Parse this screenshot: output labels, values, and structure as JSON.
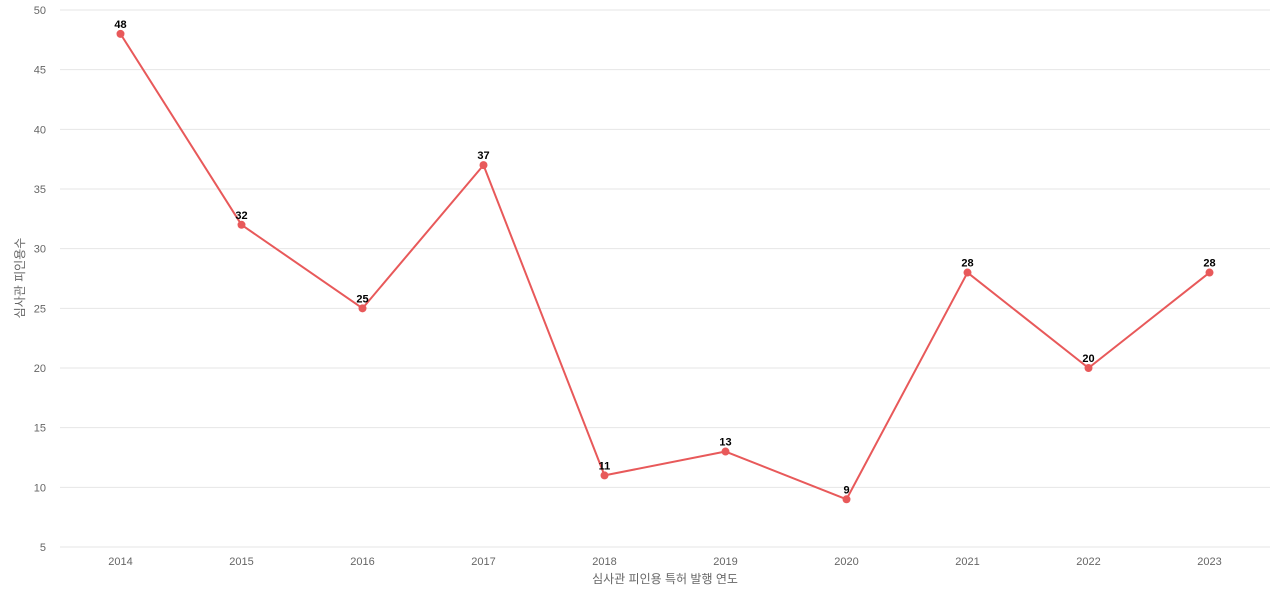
{
  "chart_data": {
    "type": "line",
    "x": [
      "2014",
      "2015",
      "2016",
      "2017",
      "2018",
      "2019",
      "2020",
      "2021",
      "2022",
      "2023"
    ],
    "series": [
      {
        "values": [
          48,
          32,
          25,
          37,
          11,
          13,
          9,
          28,
          20,
          28
        ],
        "color": "#e8595a"
      }
    ],
    "xlabel": "심사관 피인용 특허 발행 연도",
    "ylabel": "심사관 피인용수",
    "ylim": [
      5,
      50
    ],
    "yticks": [
      5,
      10,
      15,
      20,
      25,
      30,
      35,
      40,
      45,
      50
    ],
    "grid": true,
    "data_labels": true
  }
}
